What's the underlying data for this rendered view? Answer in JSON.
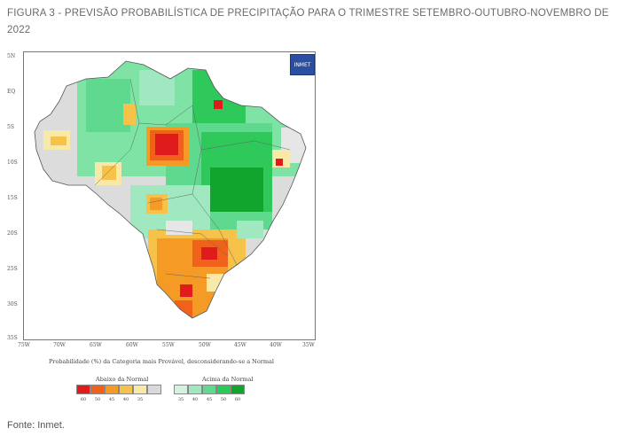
{
  "caption": "FIGURA 3 -  PREVISÃO PROBABILÍSTICA DE PRECIPITAÇÃO PARA O TRIMESTRE SETEMBRO-OUTUBRO-NOVEMBRO DE 2022",
  "source": "Fonte: Inmet.",
  "map": {
    "y_labels": [
      "5N",
      "EQ",
      "5S",
      "10S",
      "15S",
      "20S",
      "25S",
      "30S",
      "35S"
    ],
    "x_labels": [
      "75W",
      "70W",
      "65W",
      "60W",
      "55W",
      "50W",
      "45W",
      "40W",
      "35W"
    ],
    "subtitle": "Probabilidade (%) da Categoria mais Provável, desconsiderando-se a Normal",
    "logo_text": "INMET"
  },
  "legend": {
    "below_title": "Abaixo da Normal",
    "above_title": "Acima da Normal",
    "below": [
      {
        "label": "60",
        "color": "#e01b1b"
      },
      {
        "label": "50",
        "color": "#f0621c"
      },
      {
        "label": "45",
        "color": "#f59a25"
      },
      {
        "label": "40",
        "color": "#f7c24a"
      },
      {
        "label": "35",
        "color": "#f8e9a8"
      },
      {
        "label": "",
        "color": "#d9d9d9"
      }
    ],
    "above": [
      {
        "label": "35",
        "color": "#d4f2e0"
      },
      {
        "label": "40",
        "color": "#9fe8c0"
      },
      {
        "label": "45",
        "color": "#5fd98d"
      },
      {
        "label": "50",
        "color": "#2fc85a"
      },
      {
        "label": "60",
        "color": "#12a52e"
      }
    ]
  }
}
